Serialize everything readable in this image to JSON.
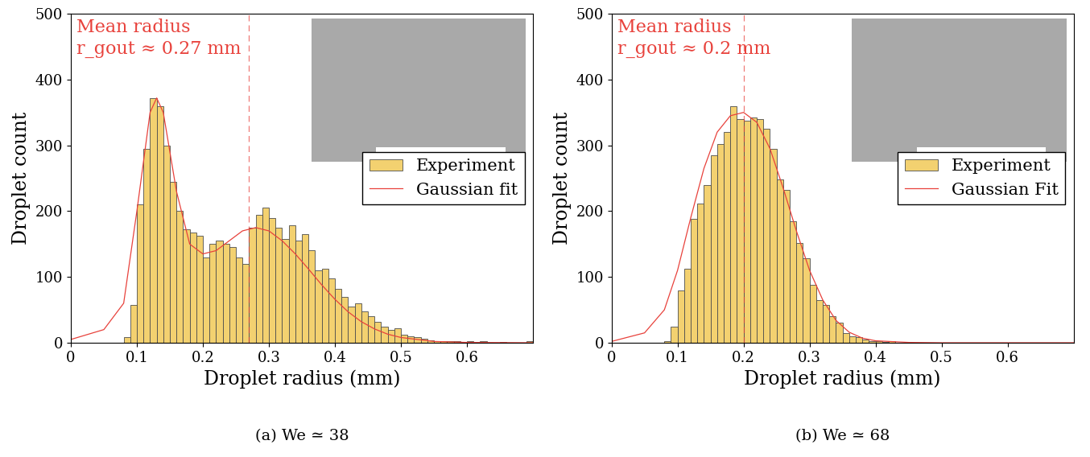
{
  "chart_data": [
    {
      "type": "histogram",
      "title": "(a) We ≃ 38",
      "x_label": "Droplet radius (mm)",
      "y_label": "Droplet count",
      "xlim": [
        0,
        0.7
      ],
      "xticks": [
        0,
        0.1,
        0.2,
        0.3,
        0.4,
        0.5,
        0.6
      ],
      "ylim": [
        0,
        500
      ],
      "yticks": [
        0,
        100,
        200,
        300,
        400,
        500
      ],
      "legend": "center right",
      "annotations": [
        "Mean radius",
        "r_gout ≈ 0.27 mm"
      ],
      "mean_radius": 0.27,
      "mean_color": "#e8423c",
      "hist": {
        "name": "Experiment",
        "color": "#f3d170",
        "bins": [
          0.08,
          0.09,
          0.1,
          0.11,
          0.12,
          0.13,
          0.14,
          0.15,
          0.16,
          0.17,
          0.18,
          0.19,
          0.2,
          0.21,
          0.22,
          0.23,
          0.24,
          0.25,
          0.26,
          0.27,
          0.28,
          0.29,
          0.3,
          0.31,
          0.32,
          0.33,
          0.34,
          0.35,
          0.36,
          0.37,
          0.38,
          0.39,
          0.4,
          0.41,
          0.42,
          0.43,
          0.44,
          0.45,
          0.46,
          0.47,
          0.48,
          0.49,
          0.5,
          0.51,
          0.52,
          0.53,
          0.54,
          0.55,
          0.56,
          0.57,
          0.58,
          0.59,
          0.6,
          0.61,
          0.62,
          0.63,
          0.64,
          0.65,
          0.66,
          0.67,
          0.68,
          0.69,
          0.7
        ],
        "counts": [
          8,
          58,
          210,
          295,
          372,
          360,
          300,
          245,
          200,
          172,
          168,
          162,
          130,
          150,
          155,
          150,
          145,
          130,
          120,
          175,
          195,
          205,
          190,
          175,
          158,
          178,
          155,
          165,
          140,
          110,
          112,
          98,
          82,
          70,
          55,
          60,
          48,
          40,
          32,
          25,
          20,
          22,
          12,
          10,
          8,
          6,
          4,
          3,
          3,
          2,
          2,
          1,
          2,
          1,
          2,
          0,
          0,
          1,
          0,
          0,
          0,
          2
        ]
      },
      "fit": {
        "name": "Gaussian fit",
        "color": "#e8423c",
        "x": [
          0,
          0.05,
          0.08,
          0.1,
          0.12,
          0.13,
          0.14,
          0.16,
          0.18,
          0.2,
          0.22,
          0.24,
          0.26,
          0.28,
          0.3,
          0.32,
          0.34,
          0.36,
          0.38,
          0.4,
          0.42,
          0.44,
          0.46,
          0.48,
          0.5,
          0.55,
          0.6,
          0.7
        ],
        "values": [
          5,
          20,
          60,
          200,
          350,
          372,
          350,
          230,
          150,
          135,
          140,
          155,
          170,
          175,
          170,
          155,
          135,
          112,
          88,
          66,
          47,
          32,
          21,
          13,
          8,
          2,
          0.5,
          0
        ]
      }
    },
    {
      "type": "histogram",
      "title": "(b) We ≃ 68",
      "x_label": "Droplet radius (mm)",
      "y_label": "Droplet count",
      "xlim": [
        0,
        0.7
      ],
      "xticks": [
        0,
        0.1,
        0.2,
        0.3,
        0.4,
        0.5,
        0.6
      ],
      "ylim": [
        0,
        500
      ],
      "yticks": [
        0,
        100,
        200,
        300,
        400,
        500
      ],
      "legend": "center right",
      "annotations": [
        "Mean radius",
        "r_gout ≈ 0.2 mm"
      ],
      "mean_radius": 0.2,
      "mean_color": "#e8423c",
      "hist": {
        "name": "Experiment",
        "color": "#f3d170",
        "bins": [
          0.08,
          0.09,
          0.1,
          0.11,
          0.12,
          0.13,
          0.14,
          0.15,
          0.16,
          0.17,
          0.18,
          0.19,
          0.2,
          0.21,
          0.22,
          0.23,
          0.24,
          0.25,
          0.26,
          0.27,
          0.28,
          0.29,
          0.3,
          0.31,
          0.32,
          0.33,
          0.34,
          0.35,
          0.36,
          0.37,
          0.38,
          0.39,
          0.4,
          0.41,
          0.42,
          0.43
        ],
        "counts": [
          3,
          25,
          80,
          112,
          188,
          212,
          240,
          285,
          302,
          320,
          360,
          340,
          338,
          342,
          340,
          325,
          295,
          248,
          232,
          185,
          152,
          128,
          88,
          65,
          58,
          40,
          30,
          15,
          10,
          8,
          5,
          3,
          2,
          1,
          2
        ]
      },
      "fit": {
        "name": "Gaussian Fit",
        "color": "#e8423c",
        "x": [
          0,
          0.05,
          0.08,
          0.1,
          0.12,
          0.14,
          0.16,
          0.18,
          0.2,
          0.22,
          0.24,
          0.26,
          0.28,
          0.3,
          0.32,
          0.34,
          0.36,
          0.38,
          0.4,
          0.45,
          0.5,
          0.7
        ],
        "values": [
          2,
          15,
          50,
          110,
          190,
          265,
          320,
          345,
          350,
          335,
          295,
          235,
          170,
          110,
          65,
          34,
          16,
          7,
          3,
          0.5,
          0,
          0
        ]
      }
    }
  ]
}
